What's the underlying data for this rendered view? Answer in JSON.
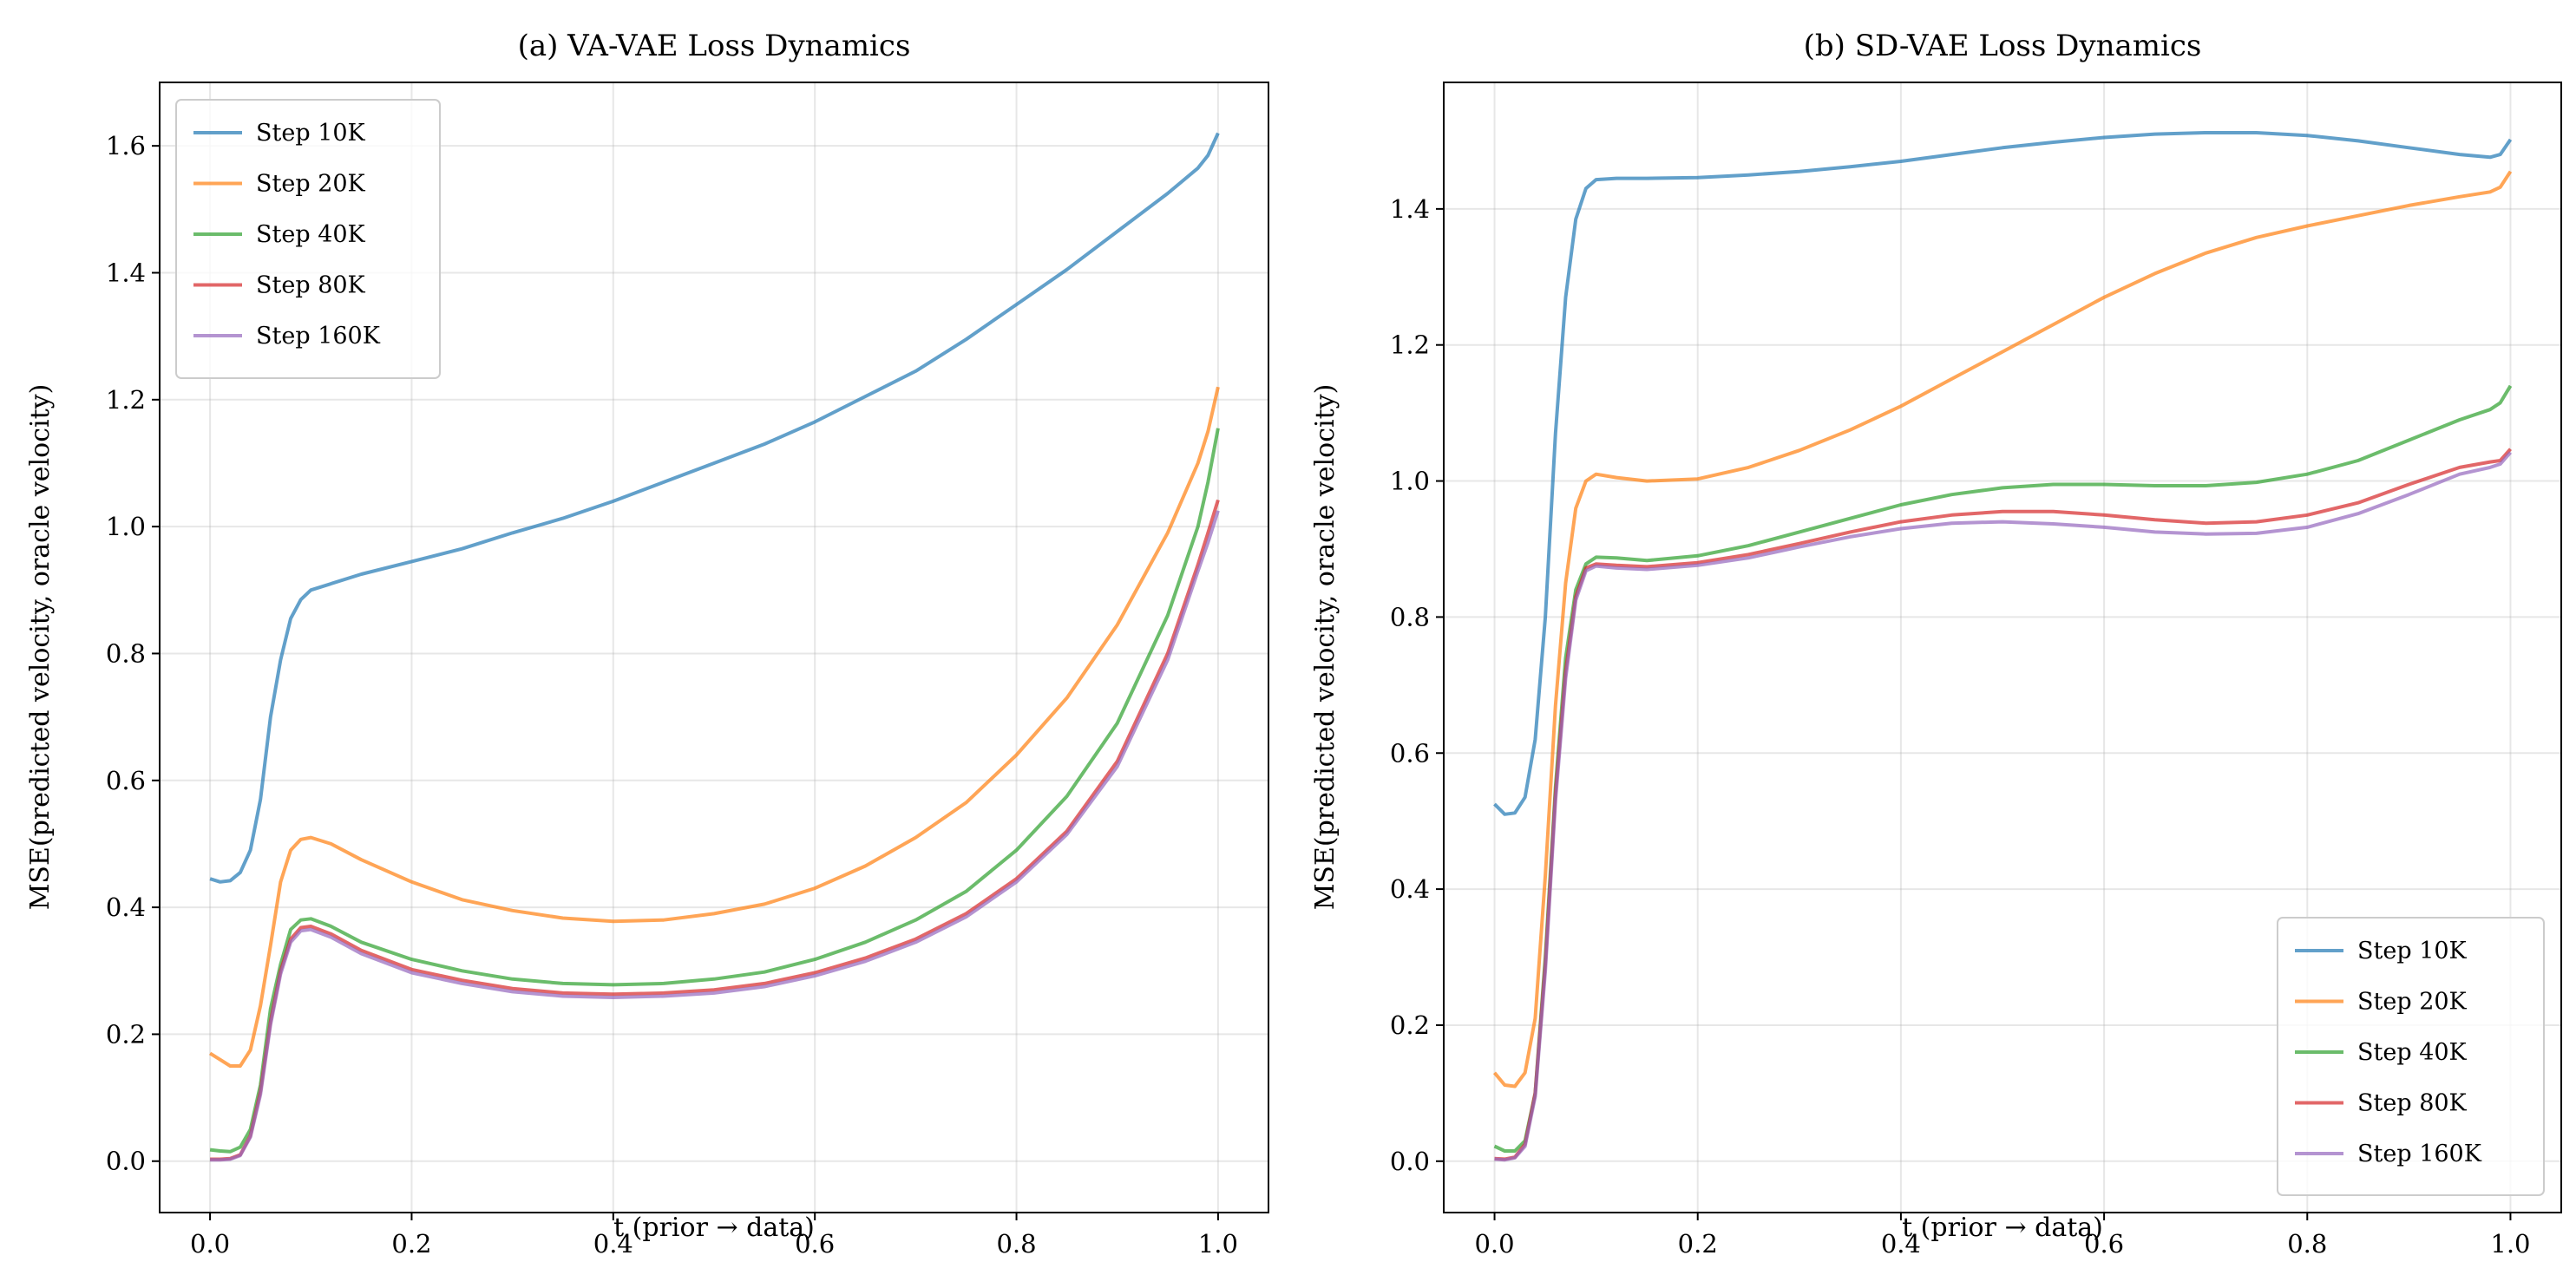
{
  "chart_data": [
    {
      "type": "line",
      "title": "(a) VA-VAE Loss Dynamics",
      "xlabel": "t (prior → data)",
      "ylabel": "MSE(predicted velocity, oracle velocity)",
      "xlim": [
        -0.05,
        1.05
      ],
      "ylim": [
        -0.081,
        1.7
      ],
      "xticks": [
        "0.0",
        "0.2",
        "0.4",
        "0.6",
        "0.8",
        "1.0"
      ],
      "yticks": [
        "0.0",
        "0.2",
        "0.4",
        "0.6",
        "0.8",
        "1.0",
        "1.2",
        "1.4",
        "1.6"
      ],
      "grid": true,
      "legend_position": "upper-left",
      "x": [
        0,
        0.01,
        0.02,
        0.03,
        0.04,
        0.05,
        0.06,
        0.07,
        0.08,
        0.09,
        0.1,
        0.12,
        0.15,
        0.2,
        0.25,
        0.3,
        0.35,
        0.4,
        0.45,
        0.5,
        0.55,
        0.6,
        0.65,
        0.7,
        0.75,
        0.8,
        0.85,
        0.9,
        0.95,
        0.98,
        0.99,
        1.0
      ],
      "series": [
        {
          "name": "Step 10K",
          "color": "#1f77b4",
          "values": [
            0.445,
            0.44,
            0.442,
            0.455,
            0.49,
            0.57,
            0.7,
            0.79,
            0.855,
            0.885,
            0.9,
            0.91,
            0.925,
            0.945,
            0.965,
            0.99,
            1.013,
            1.04,
            1.07,
            1.1,
            1.13,
            1.165,
            1.205,
            1.245,
            1.295,
            1.35,
            1.405,
            1.465,
            1.525,
            1.565,
            1.585,
            1.62
          ]
        },
        {
          "name": "Step 20K",
          "color": "#ff7f0e",
          "values": [
            0.17,
            0.16,
            0.15,
            0.15,
            0.175,
            0.245,
            0.34,
            0.44,
            0.49,
            0.507,
            0.51,
            0.5,
            0.475,
            0.44,
            0.412,
            0.395,
            0.383,
            0.378,
            0.38,
            0.39,
            0.405,
            0.43,
            0.465,
            0.51,
            0.565,
            0.64,
            0.73,
            0.845,
            0.99,
            1.1,
            1.15,
            1.22
          ]
        },
        {
          "name": "Step 40K",
          "color": "#2ca02c",
          "values": [
            0.018,
            0.016,
            0.015,
            0.022,
            0.05,
            0.12,
            0.24,
            0.31,
            0.365,
            0.38,
            0.382,
            0.37,
            0.345,
            0.318,
            0.3,
            0.287,
            0.28,
            0.278,
            0.28,
            0.287,
            0.298,
            0.318,
            0.345,
            0.38,
            0.425,
            0.49,
            0.575,
            0.69,
            0.86,
            1.0,
            1.07,
            1.155
          ]
        },
        {
          "name": "Step 80K",
          "color": "#d62728",
          "values": [
            0.003,
            0.003,
            0.004,
            0.01,
            0.04,
            0.11,
            0.22,
            0.3,
            0.35,
            0.368,
            0.37,
            0.358,
            0.332,
            0.302,
            0.285,
            0.272,
            0.265,
            0.263,
            0.265,
            0.27,
            0.28,
            0.297,
            0.32,
            0.35,
            0.39,
            0.445,
            0.52,
            0.63,
            0.8,
            0.94,
            0.99,
            1.042
          ]
        },
        {
          "name": "Step 160K",
          "color": "#9467bd",
          "values": [
            0.002,
            0.002,
            0.003,
            0.009,
            0.038,
            0.105,
            0.215,
            0.295,
            0.345,
            0.363,
            0.365,
            0.353,
            0.327,
            0.297,
            0.28,
            0.267,
            0.26,
            0.258,
            0.26,
            0.265,
            0.275,
            0.292,
            0.315,
            0.345,
            0.385,
            0.44,
            0.515,
            0.622,
            0.79,
            0.93,
            0.975,
            1.025
          ]
        }
      ]
    },
    {
      "type": "line",
      "title": "(b) SD-VAE Loss Dynamics",
      "xlabel": "t (prior → data)",
      "ylabel": "MSE(predicted velocity, oracle velocity)",
      "xlim": [
        -0.05,
        1.05
      ],
      "ylim": [
        -0.0755,
        1.586
      ],
      "xticks": [
        "0.0",
        "0.2",
        "0.4",
        "0.6",
        "0.8",
        "1.0"
      ],
      "yticks": [
        "0.0",
        "0.2",
        "0.4",
        "0.6",
        "0.8",
        "1.0",
        "1.2",
        "1.4"
      ],
      "grid": true,
      "legend_position": "lower-right",
      "x": [
        0,
        0.01,
        0.02,
        0.03,
        0.04,
        0.05,
        0.06,
        0.07,
        0.08,
        0.09,
        0.1,
        0.12,
        0.15,
        0.2,
        0.25,
        0.3,
        0.35,
        0.4,
        0.45,
        0.5,
        0.55,
        0.6,
        0.65,
        0.7,
        0.75,
        0.8,
        0.85,
        0.9,
        0.95,
        0.98,
        0.99,
        1.0
      ],
      "series": [
        {
          "name": "Step 10K",
          "color": "#1f77b4",
          "values": [
            0.525,
            0.51,
            0.512,
            0.535,
            0.62,
            0.8,
            1.07,
            1.27,
            1.385,
            1.43,
            1.443,
            1.445,
            1.445,
            1.446,
            1.45,
            1.455,
            1.462,
            1.47,
            1.48,
            1.49,
            1.498,
            1.505,
            1.51,
            1.512,
            1.512,
            1.508,
            1.5,
            1.49,
            1.48,
            1.476,
            1.48,
            1.502
          ]
        },
        {
          "name": "Step 20K",
          "color": "#ff7f0e",
          "values": [
            0.13,
            0.112,
            0.11,
            0.13,
            0.21,
            0.42,
            0.67,
            0.85,
            0.96,
            1.0,
            1.01,
            1.005,
            1.0,
            1.003,
            1.02,
            1.045,
            1.075,
            1.11,
            1.15,
            1.19,
            1.23,
            1.27,
            1.305,
            1.335,
            1.358,
            1.375,
            1.39,
            1.405,
            1.418,
            1.425,
            1.432,
            1.455
          ]
        },
        {
          "name": "Step 40K",
          "color": "#2ca02c",
          "values": [
            0.022,
            0.015,
            0.015,
            0.03,
            0.1,
            0.3,
            0.55,
            0.74,
            0.84,
            0.878,
            0.888,
            0.887,
            0.883,
            0.89,
            0.905,
            0.925,
            0.945,
            0.965,
            0.98,
            0.99,
            0.995,
            0.995,
            0.993,
            0.993,
            0.998,
            1.01,
            1.03,
            1.06,
            1.09,
            1.105,
            1.115,
            1.14
          ]
        },
        {
          "name": "Step 80K",
          "color": "#d62728",
          "values": [
            0.004,
            0.003,
            0.006,
            0.025,
            0.1,
            0.29,
            0.54,
            0.72,
            0.83,
            0.872,
            0.878,
            0.876,
            0.874,
            0.88,
            0.892,
            0.908,
            0.925,
            0.94,
            0.95,
            0.955,
            0.955,
            0.95,
            0.943,
            0.938,
            0.94,
            0.95,
            0.968,
            0.995,
            1.02,
            1.028,
            1.03,
            1.047
          ]
        },
        {
          "name": "Step 160K",
          "color": "#9467bd",
          "values": [
            0.003,
            0.002,
            0.005,
            0.022,
            0.095,
            0.28,
            0.53,
            0.71,
            0.825,
            0.868,
            0.875,
            0.872,
            0.87,
            0.876,
            0.887,
            0.903,
            0.918,
            0.93,
            0.938,
            0.94,
            0.937,
            0.932,
            0.925,
            0.922,
            0.923,
            0.932,
            0.952,
            0.98,
            1.01,
            1.02,
            1.025,
            1.042
          ]
        }
      ]
    }
  ]
}
